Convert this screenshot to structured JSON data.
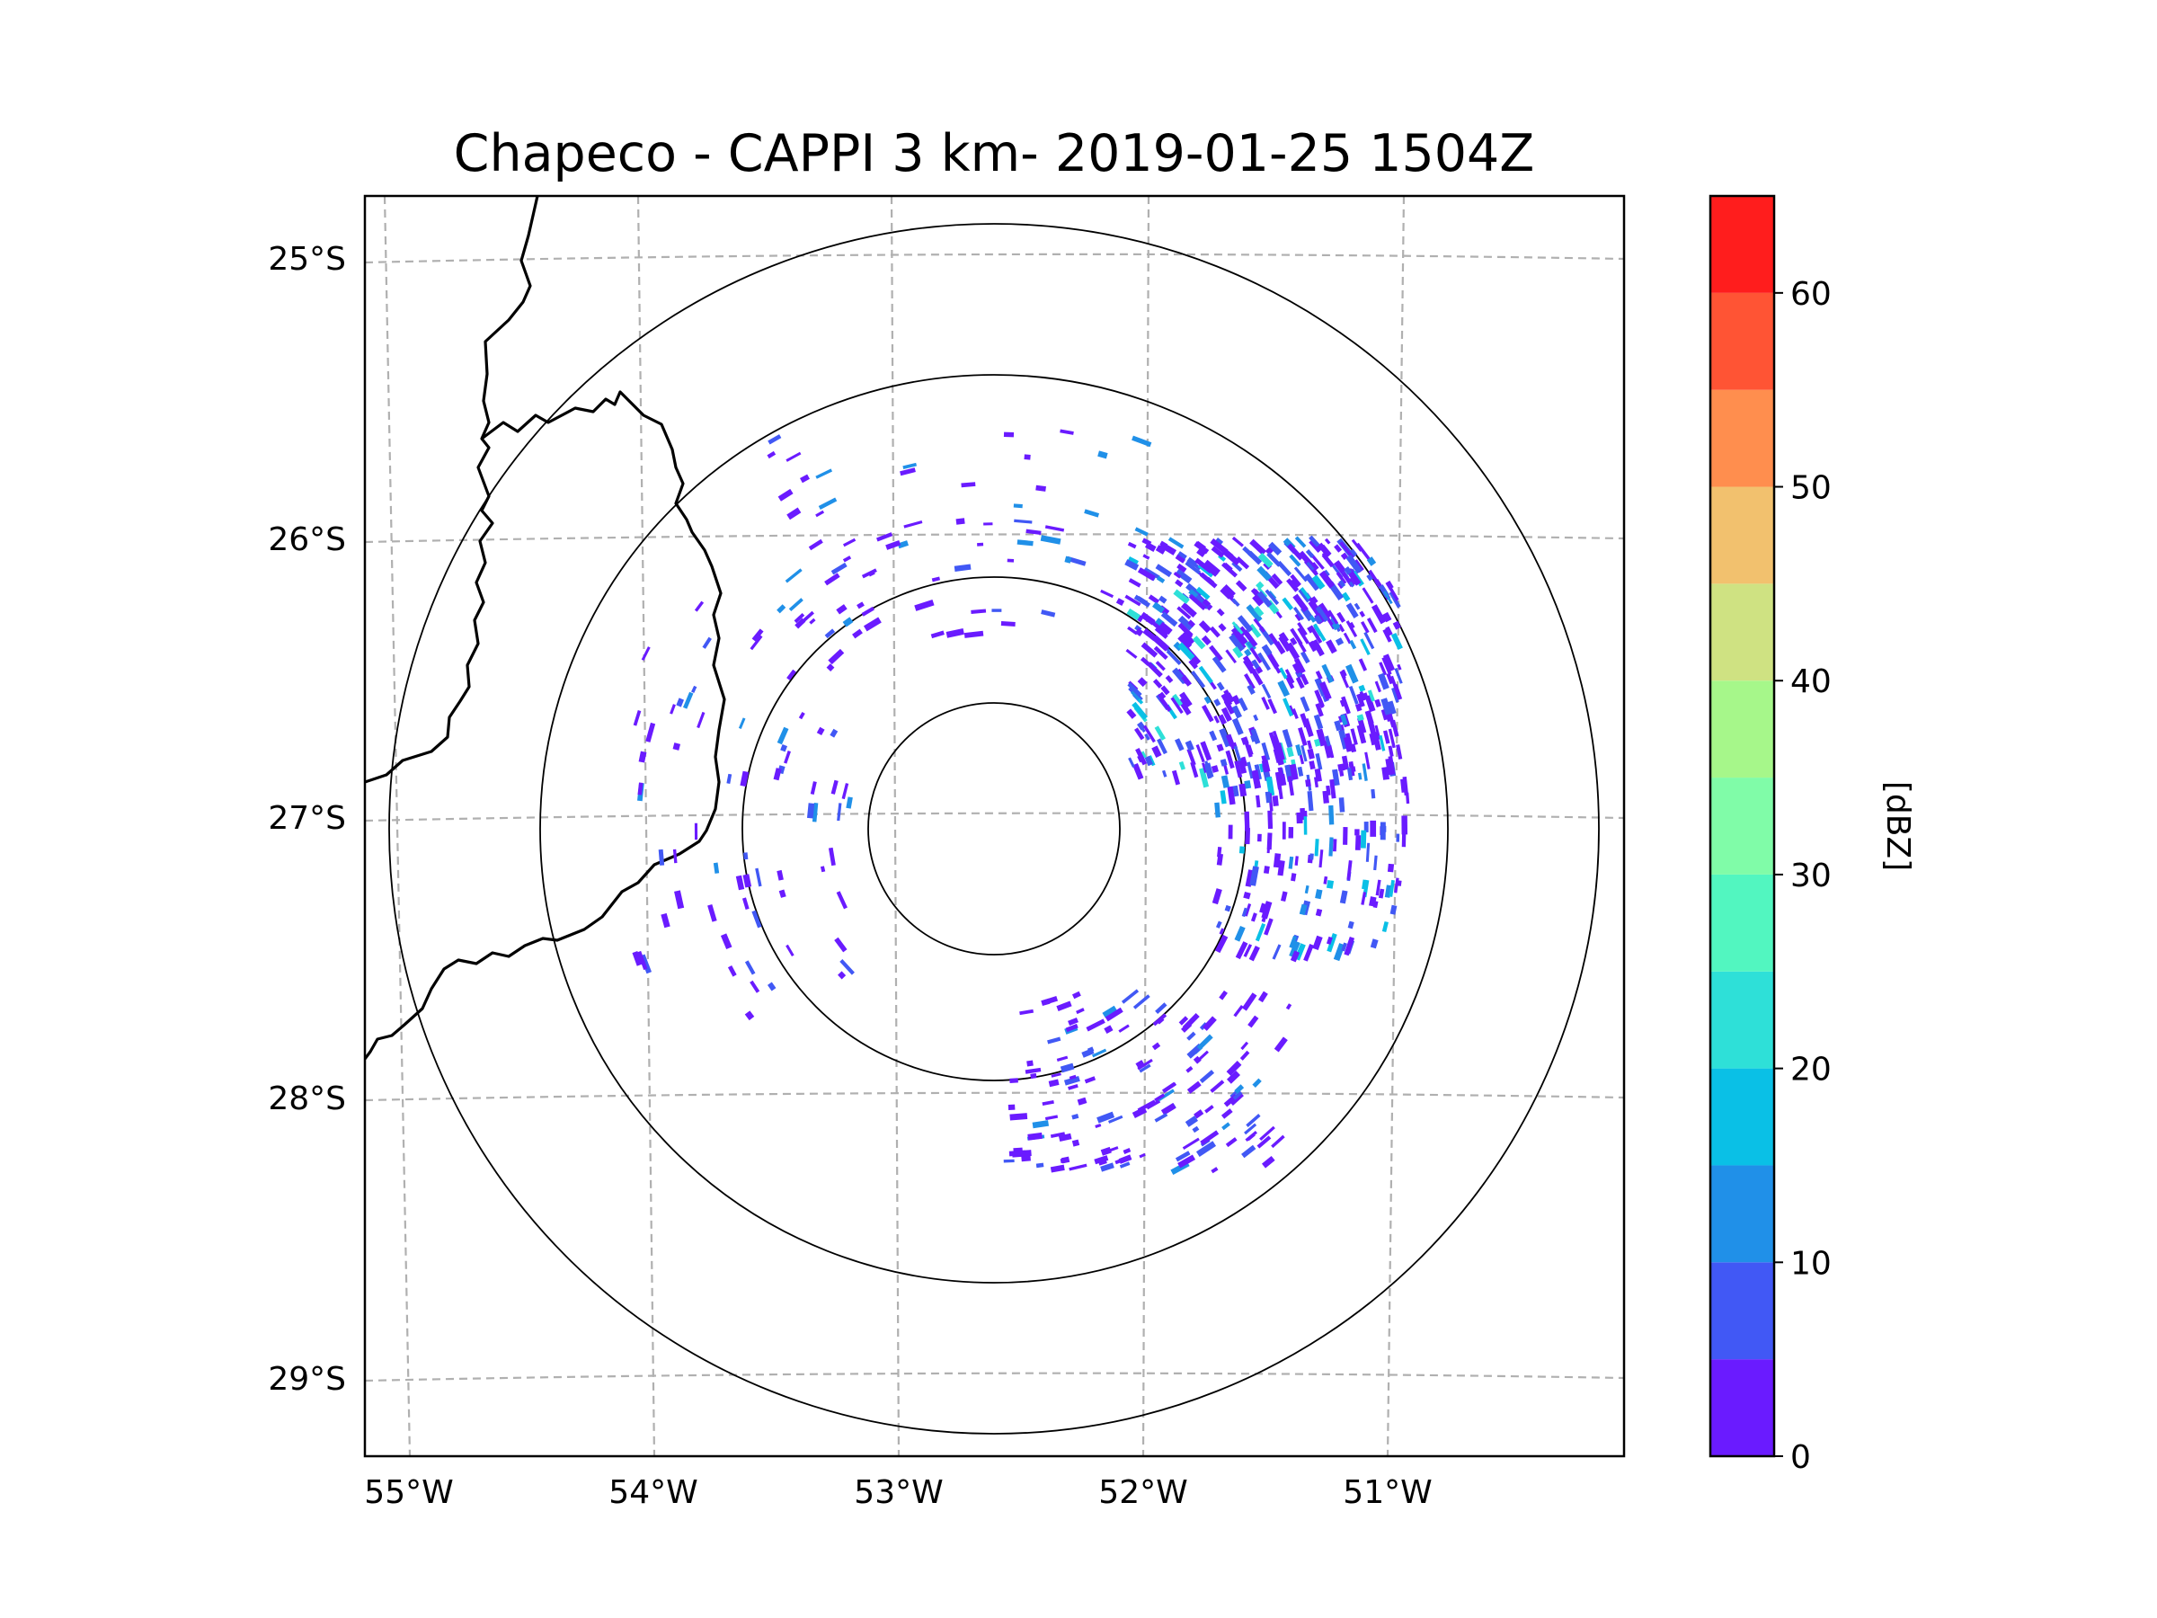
{
  "title": "Chapeco - CAPPI 3 km- 2019-01-25 1504Z",
  "map": {
    "radar_center": {
      "lon": -52.6,
      "lat": -27.03
    },
    "lon_labels": [
      "55°W",
      "54°W",
      "53°W",
      "52°W",
      "51°W"
    ],
    "lat_labels": [
      "25°S",
      "26°S",
      "27°S",
      "28°S",
      "29°S"
    ],
    "range_rings_km": [
      50,
      100,
      200,
      250
    ],
    "gridline_color": "#b0b0b0",
    "border_color": "#000000"
  },
  "colorbar": {
    "label": "[dBZ]",
    "ticks": [
      "0",
      "10",
      "20",
      "30",
      "40",
      "50",
      "60"
    ],
    "bins": [
      {
        "min": 0,
        "max": 5,
        "color": "#6a1bff"
      },
      {
        "min": 5,
        "max": 10,
        "color": "#4158f5"
      },
      {
        "min": 10,
        "max": 15,
        "color": "#2090e8"
      },
      {
        "min": 15,
        "max": 20,
        "color": "#0ac0e6"
      },
      {
        "min": 20,
        "max": 25,
        "color": "#2ee0d8"
      },
      {
        "min": 25,
        "max": 30,
        "color": "#52f6c0"
      },
      {
        "min": 30,
        "max": 35,
        "color": "#80fca8"
      },
      {
        "min": 35,
        "max": 40,
        "color": "#a6f78a"
      },
      {
        "min": 40,
        "max": 45,
        "color": "#cfe282"
      },
      {
        "min": 45,
        "max": 50,
        "color": "#f2c16e"
      },
      {
        "min": 50,
        "max": 55,
        "color": "#ff8e4e"
      },
      {
        "min": 55,
        "max": 60,
        "color": "#ff5434"
      },
      {
        "min": 60,
        "max": 65,
        "color": "#ff1d1d"
      }
    ]
  },
  "echo_regions": [
    {
      "name": "northeast-cluster",
      "lon_range": [
        -52.05,
        -50.95
      ],
      "lat_range": [
        -26.85,
        -26.0
      ],
      "density": "high",
      "dbz_range": [
        0,
        20
      ]
    },
    {
      "name": "east-cluster",
      "lon_range": [
        -51.7,
        -50.9
      ],
      "lat_range": [
        -27.5,
        -26.8
      ],
      "density": "medium",
      "dbz_range": [
        0,
        15
      ]
    },
    {
      "name": "north-arc",
      "lon_range": [
        -53.6,
        -52.0
      ],
      "lat_range": [
        -26.35,
        -25.6
      ],
      "density": "sparse",
      "dbz_range": [
        0,
        10
      ]
    },
    {
      "name": "southeast-arc",
      "lon_range": [
        -52.55,
        -51.4
      ],
      "lat_range": [
        -28.25,
        -27.6
      ],
      "density": "medium",
      "dbz_range": [
        0,
        10
      ]
    },
    {
      "name": "west-arc",
      "lon_range": [
        -54.1,
        -53.2
      ],
      "lat_range": [
        -27.7,
        -26.2
      ],
      "density": "sparse",
      "dbz_range": [
        0,
        10
      ]
    }
  ]
}
